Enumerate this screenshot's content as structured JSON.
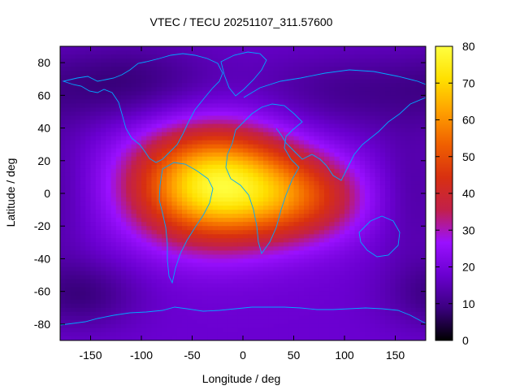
{
  "chart_data": {
    "type": "heatmap",
    "title": "VTEC / TECU 20251107_311.57600",
    "xlabel": "Longitude / deg",
    "ylabel": "Latitude / deg",
    "xlim": [
      -180,
      180
    ],
    "ylim": [
      -90,
      90
    ],
    "x_ticks": [
      -150,
      -100,
      -50,
      0,
      50,
      100,
      150
    ],
    "y_ticks": [
      -80,
      -60,
      -40,
      -20,
      0,
      20,
      40,
      60,
      80
    ],
    "colorbar": {
      "min": 0,
      "max": 80,
      "ticks": [
        0,
        10,
        20,
        30,
        40,
        50,
        60,
        70,
        80
      ],
      "colormap": [
        "#000000",
        "#3b0080",
        "#6a00d0",
        "#9a10ff",
        "#c2204a",
        "#d83010",
        "#f06000",
        "#ffa000",
        "#ffe000",
        "#ffff40"
      ]
    },
    "field": {
      "background": 18,
      "peak_center": [
        -28,
        5
      ],
      "peak_value": 78,
      "features": [
        {
          "lon": -28,
          "lat": 5,
          "amp": 58,
          "sigma_lon": 55,
          "sigma_lat": 24
        },
        {
          "lon": 60,
          "lat": -3,
          "amp": 22,
          "sigma_lon": 45,
          "sigma_lat": 18
        },
        {
          "lon": -110,
          "lat": 68,
          "amp": -9,
          "sigma_lon": 60,
          "sigma_lat": 18
        },
        {
          "lon": 100,
          "lat": 62,
          "amp": -7,
          "sigma_lon": 70,
          "sigma_lat": 18
        },
        {
          "lon": -160,
          "lat": -62,
          "amp": -9,
          "sigma_lon": 40,
          "sigma_lat": 15
        },
        {
          "lon": 170,
          "lat": 0,
          "amp": -6,
          "sigma_lon": 30,
          "sigma_lat": 30
        }
      ]
    },
    "overlay": "coastlines"
  }
}
